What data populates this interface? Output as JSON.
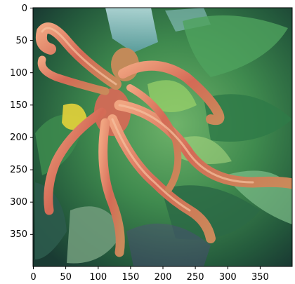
{
  "chart_data": {
    "type": "image",
    "title": "",
    "xlabel": "",
    "ylabel": "",
    "xlim": [
      0,
      400
    ],
    "ylim": [
      400,
      0
    ],
    "x_ticks": [
      0,
      50,
      100,
      150,
      200,
      250,
      300,
      350
    ],
    "y_ticks": [
      0,
      50,
      100,
      150,
      200,
      250,
      300,
      350
    ],
    "x_tick_labels": [
      "0",
      "50",
      "100",
      "150",
      "200",
      "250",
      "300",
      "350"
    ],
    "y_tick_labels": [
      "0",
      "50",
      "100",
      "150",
      "200",
      "250",
      "300",
      "350"
    ],
    "grid": false,
    "image_subject": "octopus-in-jungle-foliage",
    "colors": {
      "octopus": "#d9735a",
      "octopus_highlight": "#f2a07e",
      "foliage_dark": "#1f5a3a",
      "foliage_mid": "#3f9a55",
      "foliage_light": "#9bd36a",
      "sky": "#7fb7c9",
      "yellow_leaf": "#e6d33a",
      "purple_tint": "#5a3f8a"
    }
  }
}
